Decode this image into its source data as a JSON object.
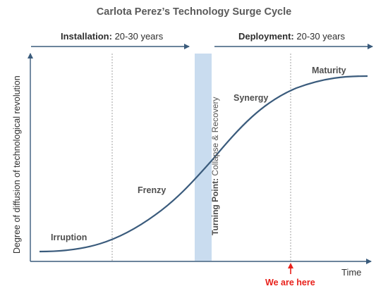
{
  "title": "Carlota Perez’s Technology Surge Cycle",
  "phases": {
    "installation": {
      "name": "Installation:",
      "duration": "20-30 years"
    },
    "deployment": {
      "name": "Deployment:",
      "duration": "20-30 years"
    }
  },
  "stages": [
    "Irruption",
    "Frenzy",
    "Synergy",
    "Maturity"
  ],
  "turning_point": {
    "name": "Turning Point:",
    "description": "Collapse & Recovery"
  },
  "axes": {
    "y_label": "Degree of diffusion of technological revolution",
    "x_label": "Time"
  },
  "marker": {
    "label": "We are here"
  },
  "colors": {
    "arrow": "#3a5b7c",
    "curve": "#3a5b7c",
    "turning_band": "#c9dcef",
    "marker": "#e8211b"
  }
}
